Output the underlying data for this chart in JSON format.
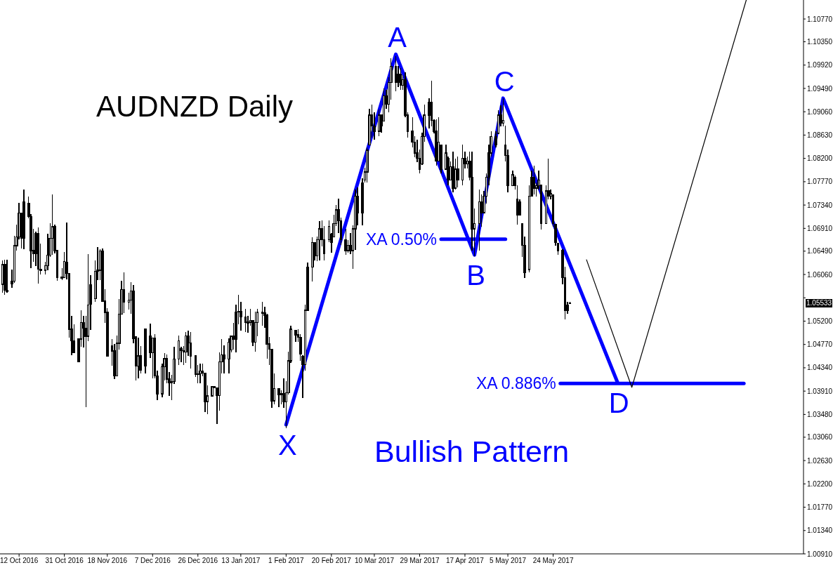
{
  "chart_data": {
    "type": "candlestick",
    "title": "AUDNZD Daily",
    "color": "#000000",
    "x": [
      "2016-10-05",
      "2016-10-06",
      "2016-10-07",
      "2016-10-09",
      "2016-10-10",
      "2016-10-11",
      "2016-10-12",
      "2016-10-13",
      "2016-10-14",
      "2016-10-16",
      "2016-10-17",
      "2016-10-18",
      "2016-10-19",
      "2016-10-20",
      "2016-10-21",
      "2016-10-23",
      "2016-10-24",
      "2016-10-25",
      "2016-10-26",
      "2016-10-27",
      "2016-10-28",
      "2016-10-30",
      "2016-10-31",
      "2016-11-01",
      "2016-11-02",
      "2016-11-03",
      "2016-11-04",
      "2016-11-06",
      "2016-11-07",
      "2016-11-08",
      "2016-11-09",
      "2016-11-10",
      "2016-11-11",
      "2016-11-13",
      "2016-11-14",
      "2016-11-15",
      "2016-11-16",
      "2016-11-17",
      "2016-11-18",
      "2016-11-20",
      "2016-11-21",
      "2016-11-22",
      "2016-11-23",
      "2016-11-24",
      "2016-11-25",
      "2016-11-27",
      "2016-11-28",
      "2016-11-29",
      "2016-11-30",
      "2016-12-01",
      "2016-12-02",
      "2016-12-04",
      "2016-12-06",
      "2016-12-07",
      "2016-12-08",
      "2016-12-09",
      "2016-12-11",
      "2016-12-12",
      "2016-12-13",
      "2016-12-14",
      "2016-12-15",
      "2016-12-16",
      "2016-12-18",
      "2016-12-19",
      "2016-12-20",
      "2016-12-21",
      "2016-12-22",
      "2016-12-23",
      "2016-12-25",
      "2016-12-26",
      "2016-12-27",
      "2016-12-28",
      "2016-12-29",
      "2016-12-30",
      "2017-01-01",
      "2017-01-02",
      "2017-01-03",
      "2017-01-04",
      "2017-01-05",
      "2017-01-06",
      "2017-01-08",
      "2017-01-09",
      "2017-01-10",
      "2017-01-11",
      "2017-01-12",
      "2017-01-13",
      "2017-01-15",
      "2017-01-16",
      "2017-01-17",
      "2017-01-18",
      "2017-01-19",
      "2017-01-20",
      "2017-01-22",
      "2017-01-23",
      "2017-01-24",
      "2017-01-25",
      "2017-01-26",
      "2017-01-27",
      "2017-01-29",
      "2017-01-30",
      "2017-01-31",
      "2017-02-01",
      "2017-02-02",
      "2017-02-03",
      "2017-02-05",
      "2017-02-06",
      "2017-02-07",
      "2017-02-08",
      "2017-02-09",
      "2017-02-10",
      "2017-02-12",
      "2017-02-13",
      "2017-02-14",
      "2017-02-15",
      "2017-02-16",
      "2017-02-17",
      "2017-02-19",
      "2017-02-20",
      "2017-02-21",
      "2017-02-22",
      "2017-02-23",
      "2017-02-24",
      "2017-02-26",
      "2017-02-27",
      "2017-02-28",
      "2017-03-01",
      "2017-03-02",
      "2017-03-03",
      "2017-03-05",
      "2017-03-06",
      "2017-03-07",
      "2017-03-08",
      "2017-03-09",
      "2017-03-10",
      "2017-03-12",
      "2017-03-13",
      "2017-03-14",
      "2017-03-15",
      "2017-03-16",
      "2017-03-17",
      "2017-03-19",
      "2017-03-20",
      "2017-03-21",
      "2017-03-22",
      "2017-03-23",
      "2017-03-24",
      "2017-03-26",
      "2017-03-27",
      "2017-03-28",
      "2017-03-29",
      "2017-03-30",
      "2017-03-31",
      "2017-04-02",
      "2017-04-03",
      "2017-04-04",
      "2017-04-05",
      "2017-04-06",
      "2017-04-07",
      "2017-04-09",
      "2017-04-10",
      "2017-04-11",
      "2017-04-12",
      "2017-04-13",
      "2017-04-14",
      "2017-04-16",
      "2017-04-17",
      "2017-04-18",
      "2017-04-19",
      "2017-04-20",
      "2017-04-21",
      "2017-04-23",
      "2017-04-24",
      "2017-04-25",
      "2017-04-26",
      "2017-04-27",
      "2017-04-28",
      "2017-04-30",
      "2017-05-01",
      "2017-05-02",
      "2017-05-03",
      "2017-05-04",
      "2017-05-05",
      "2017-05-07",
      "2017-05-08",
      "2017-05-09",
      "2017-05-10",
      "2017-05-11",
      "2017-05-12",
      "2017-05-14",
      "2017-05-15",
      "2017-05-16",
      "2017-05-17",
      "2017-05-18",
      "2017-05-19",
      "2017-05-21",
      "2017-05-22",
      "2017-05-23",
      "2017-05-24",
      "2017-05-25",
      "2017-05-26",
      "2017-05-28",
      "2017-05-29",
      "2017-05-30",
      "2017-05-31"
    ],
    "ohlc": [
      [
        1.0588,
        1.0632,
        1.0573,
        1.0624
      ],
      [
        1.0624,
        1.0633,
        1.0569,
        1.0577
      ],
      [
        1.0577,
        1.0633,
        1.0573,
        1.0574
      ],
      [
        1.0589,
        1.0615,
        1.0581,
        1.0594
      ],
      [
        1.0594,
        1.0677,
        1.0591,
        1.0659
      ],
      [
        1.0659,
        1.0698,
        1.065,
        1.0675
      ],
      [
        1.0675,
        1.0738,
        1.0671,
        1.0719
      ],
      [
        1.0719,
        1.0719,
        1.0654,
        1.0673
      ],
      [
        1.0673,
        1.0763,
        1.0653,
        1.074
      ],
      [
        1.0737,
        1.075,
        1.071,
        1.0713
      ],
      [
        1.0713,
        1.0717,
        1.0618,
        1.065
      ],
      [
        1.065,
        1.069,
        1.0629,
        1.0644
      ],
      [
        1.0644,
        1.0685,
        1.0622,
        1.0681
      ],
      [
        1.0682,
        1.0693,
        1.0589,
        1.0616
      ],
      [
        1.0616,
        1.0663,
        1.0606,
        1.0614
      ],
      [
        1.0614,
        1.0629,
        1.0606,
        1.0622
      ],
      [
        1.0622,
        1.0681,
        1.0614,
        1.0642
      ],
      [
        1.0642,
        1.07,
        1.0639,
        1.0673
      ],
      [
        1.0673,
        1.0754,
        1.0642,
        1.0694
      ],
      [
        1.0694,
        1.0698,
        1.0645,
        1.065
      ],
      [
        1.065,
        1.065,
        1.0594,
        1.0601
      ],
      [
        1.0601,
        1.0618,
        1.0596,
        1.06
      ],
      [
        1.06,
        1.0648,
        1.0599,
        1.063
      ],
      [
        1.0629,
        1.0702,
        1.0597,
        1.0608
      ],
      [
        1.0608,
        1.0608,
        1.0489,
        1.0505
      ],
      [
        1.0505,
        1.053,
        1.0457,
        1.0484
      ],
      [
        1.0484,
        1.0514,
        1.0462,
        1.0462
      ],
      [
        1.0445,
        1.0487,
        1.0444,
        1.0487
      ],
      [
        1.0487,
        1.054,
        1.0473,
        1.0517
      ],
      [
        1.0517,
        1.053,
        1.0471,
        1.0507
      ],
      [
        1.0507,
        1.053,
        1.0361,
        1.0492
      ],
      [
        1.0492,
        1.0644,
        1.0483,
        1.055
      ],
      [
        1.0551,
        1.0605,
        1.0504,
        1.0587
      ],
      [
        1.0561,
        1.0632,
        1.0555,
        1.0612
      ],
      [
        1.0612,
        1.0656,
        1.0596,
        1.0614
      ],
      [
        1.0614,
        1.0652,
        1.0596,
        1.0649
      ],
      [
        1.0649,
        1.0654,
        1.0556,
        1.0557
      ],
      [
        1.0557,
        1.0579,
        1.0517,
        1.0536
      ],
      [
        1.0536,
        1.0544,
        1.0456,
        1.0456
      ],
      [
        1.0474,
        1.0487,
        1.0438,
        1.0465
      ],
      [
        1.0465,
        1.0478,
        1.0413,
        1.0419
      ],
      [
        1.0419,
        1.0493,
        1.0418,
        1.0479
      ],
      [
        1.0479,
        1.0561,
        1.0467,
        1.0533
      ],
      [
        1.0533,
        1.0594,
        1.0532,
        1.0578
      ],
      [
        1.0578,
        1.061,
        1.0535,
        1.0555
      ],
      [
        1.0555,
        1.0573,
        1.0541,
        1.0559
      ],
      [
        1.0559,
        1.0592,
        1.0533,
        1.0576
      ],
      [
        1.0576,
        1.0586,
        1.0479,
        1.0488
      ],
      [
        1.0491,
        1.0491,
        1.041,
        1.0437
      ],
      [
        1.0437,
        1.049,
        1.0415,
        1.0456
      ],
      [
        1.0456,
        1.0474,
        1.0423,
        1.043
      ],
      [
        1.0437,
        1.0506,
        1.0424,
        1.0506
      ],
      [
        1.0492,
        1.0516,
        1.0452,
        1.0462
      ],
      [
        1.0462,
        1.049,
        1.0415,
        1.0489
      ],
      [
        1.0489,
        1.0496,
        1.0415,
        1.0419
      ],
      [
        1.0419,
        1.0429,
        1.0374,
        1.0386
      ],
      [
        1.0386,
        1.0442,
        1.038,
        1.0436
      ],
      [
        1.0436,
        1.0461,
        1.0411,
        1.0451
      ],
      [
        1.0451,
        1.0458,
        1.0405,
        1.0413
      ],
      [
        1.0413,
        1.0426,
        1.0382,
        1.0407
      ],
      [
        1.0407,
        1.0421,
        1.0374,
        1.0409
      ],
      [
        1.0409,
        1.0473,
        1.0404,
        1.045
      ],
      [
        1.045,
        1.0493,
        1.0439,
        1.0484
      ],
      [
        1.0469,
        1.0473,
        1.0444,
        1.0466
      ],
      [
        1.0466,
        1.0474,
        1.0439,
        1.0463
      ],
      [
        1.0463,
        1.05,
        1.0443,
        1.0493
      ],
      [
        1.0493,
        1.0503,
        1.0456,
        1.048
      ],
      [
        1.048,
        1.05,
        1.0433,
        1.0456
      ],
      [
        1.0456,
        1.0456,
        1.0417,
        1.0422
      ],
      [
        1.0422,
        1.0439,
        1.0405,
        1.0423
      ],
      [
        1.0423,
        1.0442,
        1.0406,
        1.0428
      ],
      [
        1.0428,
        1.0442,
        1.0418,
        1.0424
      ],
      [
        1.0424,
        1.0424,
        1.0353,
        1.0372
      ],
      [
        1.0372,
        1.0401,
        1.0348,
        1.0382
      ],
      [
        1.0382,
        1.0399,
        1.0382,
        1.0399
      ],
      [
        1.0399,
        1.04,
        1.0397,
        1.0397
      ],
      [
        1.0397,
        1.0397,
        1.033,
        1.0383
      ],
      [
        1.0383,
        1.0462,
        1.0355,
        1.0445
      ],
      [
        1.0445,
        1.0487,
        1.0423,
        1.0458
      ],
      [
        1.0458,
        1.0475,
        1.0423,
        1.045
      ],
      [
        1.045,
        1.0488,
        1.0424,
        1.0481
      ],
      [
        1.0467,
        1.0493,
        1.0462,
        1.0492
      ],
      [
        1.0492,
        1.0517,
        1.0468,
        1.0487
      ],
      [
        1.0487,
        1.055,
        1.0463,
        1.0537
      ],
      [
        1.0537,
        1.0569,
        1.0514,
        1.0538
      ],
      [
        1.0538,
        1.0556,
        1.0503,
        1.0528
      ],
      [
        1.0528,
        1.0543,
        1.05,
        1.0518
      ],
      [
        1.0518,
        1.053,
        1.0498,
        1.0518
      ],
      [
        1.0518,
        1.0542,
        1.0512,
        1.0521
      ],
      [
        1.0521,
        1.0522,
        1.0474,
        1.0481
      ],
      [
        1.0481,
        1.0537,
        1.0464,
        1.0517
      ],
      [
        1.0517,
        1.0542,
        1.0492,
        1.0536
      ],
      [
        1.0536,
        1.0555,
        1.0512,
        1.0535
      ],
      [
        1.0535,
        1.0546,
        1.0508,
        1.0531
      ],
      [
        1.0531,
        1.0534,
        1.0451,
        1.0478
      ],
      [
        1.0478,
        1.0491,
        1.0439,
        1.0468
      ],
      [
        1.0468,
        1.0468,
        1.036,
        1.0373
      ],
      [
        1.0373,
        1.0424,
        1.0367,
        1.0396
      ],
      [
        1.0396,
        1.0397,
        1.0361,
        1.0385
      ],
      [
        1.0385,
        1.0393,
        1.0366,
        1.0386
      ],
      [
        1.0386,
        1.0415,
        1.036,
        1.0371
      ],
      [
        1.0371,
        1.0409,
        1.0323,
        1.0388
      ],
      [
        1.0388,
        1.0464,
        1.0385,
        1.0447
      ],
      [
        1.0447,
        1.0512,
        1.0443,
        1.0505
      ],
      [
        1.0503,
        1.0503,
        1.0482,
        1.0495
      ],
      [
        1.0495,
        1.0505,
        1.0482,
        1.049
      ],
      [
        1.049,
        1.0496,
        1.0447,
        1.046
      ],
      [
        1.0455,
        1.0457,
        1.0378,
        1.044
      ],
      [
        1.044,
        1.0551,
        1.0429,
        1.054
      ],
      [
        1.054,
        1.0628,
        1.054,
        1.062
      ],
      [
        1.062,
        1.0674,
        1.0593,
        1.0665
      ],
      [
        1.0665,
        1.0665,
        1.0632,
        1.064
      ],
      [
        1.064,
        1.0676,
        1.063,
        1.067
      ],
      [
        1.067,
        1.0704,
        1.0632,
        1.069
      ],
      [
        1.069,
        1.0706,
        1.0658,
        1.067
      ],
      [
        1.067,
        1.0695,
        1.0632,
        1.0645
      ],
      [
        1.067,
        1.0706,
        1.0665,
        1.0695
      ],
      [
        1.068,
        1.0683,
        1.0646,
        1.0665
      ],
      [
        1.0675,
        1.0716,
        1.0674,
        1.07
      ],
      [
        1.07,
        1.0734,
        1.0695,
        1.0725
      ],
      [
        1.0725,
        1.0746,
        1.0683,
        1.0705
      ],
      [
        1.0705,
        1.0711,
        1.066,
        1.067
      ],
      [
        1.067,
        1.069,
        1.0642,
        1.065
      ],
      [
        1.065,
        1.0669,
        1.0646,
        1.066
      ],
      [
        1.066,
        1.0683,
        1.0644,
        1.065
      ],
      [
        1.065,
        1.0697,
        1.0616,
        1.069
      ],
      [
        1.069,
        1.0762,
        1.0651,
        1.075
      ],
      [
        1.075,
        1.0766,
        1.0697,
        1.072
      ],
      [
        1.072,
        1.0783,
        1.0697,
        1.0775
      ],
      [
        1.078,
        1.0803,
        1.0776,
        1.0795
      ],
      [
        1.0795,
        1.084,
        1.0776,
        1.0835
      ],
      [
        1.0845,
        1.0912,
        1.0845,
        1.09
      ],
      [
        1.09,
        1.0919,
        1.0859,
        1.088
      ],
      [
        1.088,
        1.0905,
        1.0854,
        1.087
      ],
      [
        1.087,
        1.091,
        1.0861,
        1.09
      ],
      [
        1.09,
        1.09,
        1.0868,
        1.088
      ],
      [
        1.0889,
        1.0949,
        1.0889,
        1.0935
      ],
      [
        1.0935,
        1.0947,
        1.0912,
        1.092
      ],
      [
        1.092,
        1.097,
        1.0905,
        1.096
      ],
      [
        1.096,
        1.1004,
        1.0928,
        1.099
      ],
      [
        1.099,
        1.1009,
        1.0944,
        1.096
      ],
      [
        1.096,
        1.099,
        1.0951,
        1.0975
      ],
      [
        1.0975,
        1.0986,
        1.0947,
        1.0955
      ],
      [
        1.0955,
        1.0974,
        1.0947,
        1.0965
      ],
      [
        1.0965,
        1.0979,
        1.0896,
        1.09
      ],
      [
        1.09,
        1.0905,
        1.0859,
        1.087
      ],
      [
        1.087,
        1.0896,
        1.084,
        1.085
      ],
      [
        1.085,
        1.0861,
        1.0822,
        1.083
      ],
      [
        1.083,
        1.0854,
        1.0813,
        1.082
      ],
      [
        1.082,
        1.0836,
        1.0792,
        1.08
      ],
      [
        1.081,
        1.0868,
        1.0808,
        1.086
      ],
      [
        1.086,
        1.0919,
        1.085,
        1.09
      ],
      [
        1.09,
        1.0931,
        1.0875,
        1.0924
      ],
      [
        1.0924,
        1.0963,
        1.0879,
        1.089
      ],
      [
        1.089,
        1.0892,
        1.0866,
        1.087
      ],
      [
        1.087,
        1.0892,
        1.0806,
        1.0815
      ],
      [
        1.0815,
        1.0896,
        1.0814,
        1.085
      ],
      [
        1.0845,
        1.0845,
        1.0793,
        1.08
      ],
      [
        1.08,
        1.0845,
        1.08,
        1.083
      ],
      [
        1.082,
        1.0823,
        1.0771,
        1.078
      ],
      [
        1.078,
        1.0814,
        1.078,
        1.0805
      ],
      [
        1.0805,
        1.0832,
        1.0758,
        1.0765
      ],
      [
        1.0765,
        1.0819,
        1.0763,
        1.08
      ],
      [
        1.08,
        1.0823,
        1.0767,
        1.078
      ],
      [
        1.078,
        1.0845,
        1.0771,
        1.082
      ],
      [
        1.082,
        1.0832,
        1.0801,
        1.081
      ],
      [
        1.081,
        1.0823,
        1.0801,
        1.0815
      ],
      [
        1.0815,
        1.0832,
        1.078,
        1.0785
      ],
      [
        1.0785,
        1.0832,
        1.065,
        1.069
      ],
      [
        1.069,
        1.0728,
        1.064,
        1.07
      ],
      [
        1.07,
        1.0763,
        1.065,
        1.074
      ],
      [
        1.074,
        1.0754,
        1.0694,
        1.072
      ],
      [
        1.072,
        1.076,
        1.0719,
        1.075
      ],
      [
        1.075,
        1.0793,
        1.0737,
        1.0785
      ],
      [
        1.0785,
        1.0845,
        1.0771,
        1.083
      ],
      [
        1.083,
        1.087,
        1.0823,
        1.086
      ],
      [
        1.086,
        1.087,
        1.084,
        1.0845
      ],
      [
        1.0866,
        1.0909,
        1.0866,
        1.09
      ],
      [
        1.09,
        1.0918,
        1.0879,
        1.0885
      ],
      [
        1.0885,
        1.0931,
        1.0879,
        1.089
      ],
      [
        1.0845,
        1.088,
        1.0814,
        1.0825
      ],
      [
        1.0825,
        1.0836,
        1.0758,
        1.077
      ],
      [
        1.077,
        1.0797,
        1.077,
        1.079
      ],
      [
        1.0785,
        1.0788,
        1.0763,
        1.077
      ],
      [
        1.0745,
        1.077,
        1.0698,
        1.0715
      ],
      [
        1.0715,
        1.0745,
        1.0715,
        1.074
      ],
      [
        1.07,
        1.07,
        1.0638,
        1.066
      ],
      [
        1.066,
        1.0676,
        1.0599,
        1.061
      ],
      [
        1.0615,
        1.0771,
        1.061,
        1.075
      ],
      [
        1.075,
        1.0797,
        1.075,
        1.0785
      ],
      [
        1.0785,
        1.0806,
        1.0754,
        1.0765
      ],
      [
        1.0765,
        1.0776,
        1.075,
        1.077
      ],
      [
        1.077,
        1.0797,
        1.0763,
        1.078
      ],
      [
        1.0771,
        1.0771,
        1.0689,
        1.07
      ],
      [
        1.07,
        1.0771,
        1.07,
        1.076
      ],
      [
        1.076,
        1.0819,
        1.0745,
        1.075
      ],
      [
        1.075,
        1.0763,
        1.0745,
        1.0755
      ],
      [
        1.0752,
        1.0752,
        1.0694,
        1.07
      ],
      [
        1.0698,
        1.0698,
        1.0659,
        1.0665
      ],
      [
        1.0663,
        1.0663,
        1.0642,
        1.065
      ],
      [
        1.065,
        1.0653,
        1.0588,
        1.06
      ],
      [
        1.06,
        1.062,
        1.0523,
        1.054
      ],
      [
        1.054,
        1.0556,
        1.0534,
        1.055
      ],
      [
        1.0554,
        1.0556,
        1.0553,
        1.0553
      ]
    ],
    "series": [
      {
        "type": "line",
        "color": "#0000ff",
        "x": [
          "2017-02-01",
          "2017-03-19",
          "2017-04-21",
          "2017-05-03",
          "2017-06-20"
        ],
        "values": [
          1.0329,
          1.1012,
          1.0642,
          1.0931,
          1.0407
        ],
        "value_labels": [
          "X",
          "A",
          "B",
          "C",
          "D"
        ]
      },
      {
        "type": "line",
        "name": "XA 0.50%",
        "color": "#0000ff",
        "x": [
          "2017-04-07",
          "2017-05-04"
        ],
        "values": [
          1.0671,
          1.0671
        ]
      },
      {
        "type": "line",
        "name": "XA 0.886%",
        "color": "#0000ff",
        "x": [
          "2017-05-27",
          "2017-08-12"
        ],
        "values": [
          1.0405,
          1.0405
        ]
      },
      {
        "type": "line",
        "color": "#000000",
        "x": [
          "2017-06-07",
          "2017-06-26",
          "2017-08-13"
        ],
        "values": [
          1.0633,
          1.0398,
          1.1112
        ]
      }
    ],
    "annotations": [
      "Bullish Pattern",
      {
        "text": "1.05533",
        "y": 1.05533
      }
    ],
    "xlim": [
      "2016-10-04",
      "2017-09-06"
    ],
    "xticks": [
      {
        "value": "2016-10-12",
        "label": "12 Oct 2016"
      },
      {
        "value": "2016-10-31",
        "label": "31 Oct 2016"
      },
      {
        "value": "2016-11-18",
        "label": "18 Nov 2016"
      },
      {
        "value": "2016-12-07",
        "label": "7 Dec 2016"
      },
      {
        "value": "2016-12-26",
        "label": "26 Dec 2016"
      },
      {
        "value": "2017-01-13",
        "label": "13 Jan 2017"
      },
      {
        "value": "2017-02-01",
        "label": "1 Feb 2017"
      },
      {
        "value": "2017-02-20",
        "label": "20 Feb 2017"
      },
      {
        "value": "2017-03-10",
        "label": "10 Mar 2017"
      },
      {
        "value": "2017-03-29",
        "label": "29 Mar 2017"
      },
      {
        "value": "2017-04-17",
        "label": "17 Apr 2017"
      },
      {
        "value": "2017-05-05",
        "label": "5 May 2017"
      },
      {
        "value": "2017-05-24",
        "label": "24 May 2017"
      }
    ],
    "ylim": [
      1.0091,
      1.1112
    ],
    "yticks": [
      {
        "value": 1.0091,
        "label": "1.00910"
      },
      {
        "value": 1.0134,
        "label": "1.01340"
      },
      {
        "value": 1.0177,
        "label": "1.01770"
      },
      {
        "value": 1.022,
        "label": "1.02200"
      },
      {
        "value": 1.0263,
        "label": "1.02630"
      },
      {
        "value": 1.0306,
        "label": "1.03060"
      },
      {
        "value": 1.0348,
        "label": "1.03480"
      },
      {
        "value": 1.0391,
        "label": "1.03910"
      },
      {
        "value": 1.0434,
        "label": "1.04340"
      },
      {
        "value": 1.0477,
        "label": "1.04770"
      },
      {
        "value": 1.052,
        "label": "1.05200"
      },
      {
        "value": 1.0563,
        "label": null
      },
      {
        "value": 1.0606,
        "label": "1.06060"
      },
      {
        "value": 1.0649,
        "label": "1.06490"
      },
      {
        "value": 1.0691,
        "label": "1.06910"
      },
      {
        "value": 1.0734,
        "label": "1.07340"
      },
      {
        "value": 1.0777,
        "label": "1.07770"
      },
      {
        "value": 1.082,
        "label": "1.08200"
      },
      {
        "value": 1.0863,
        "label": "1.08630"
      },
      {
        "value": 1.0906,
        "label": "1.09060"
      },
      {
        "value": 1.0949,
        "label": "1.09490"
      },
      {
        "value": 1.0992,
        "label": "1.09920"
      },
      {
        "value": 1.1035,
        "label": "1.10350"
      },
      {
        "value": 1.1077,
        "label": "1.10770"
      }
    ]
  }
}
